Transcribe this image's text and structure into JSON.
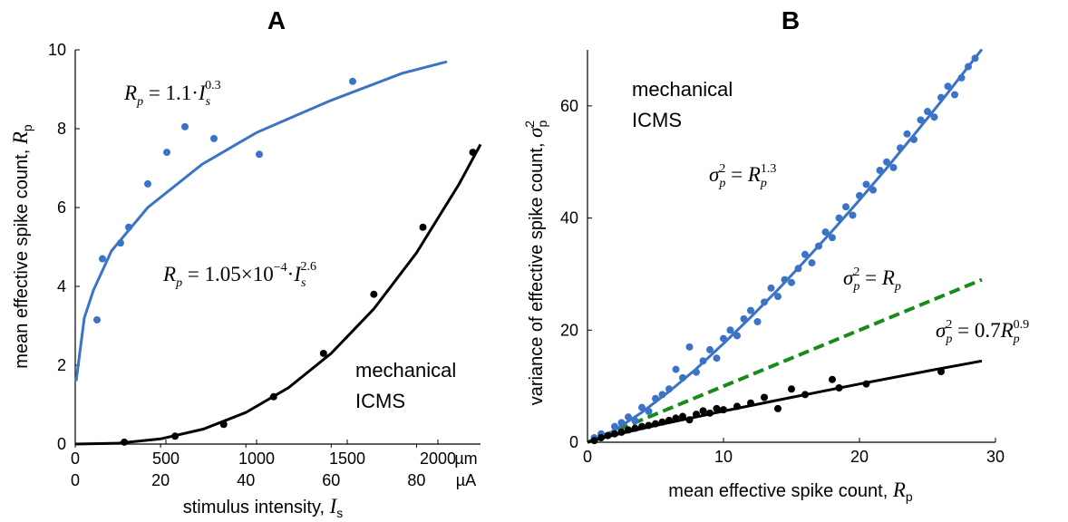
{
  "chart_data": [
    {
      "type": "scatter",
      "title": "A",
      "xlabel": [
        "stimulus intensity, ",
        "I",
        "s"
      ],
      "ylabel": [
        "mean effective spike count, ",
        "R",
        "p"
      ],
      "xlim": [
        0,
        2235
      ],
      "xticks": [
        0,
        500,
        1000,
        1500,
        2000
      ],
      "xunit": "µm",
      "xtick_color": "#3b73c6",
      "x2lim": [
        0,
        95
      ],
      "x2ticks": [
        0,
        20,
        40,
        60,
        80
      ],
      "x2unit": "µA",
      "x2tick_color": "#000000",
      "ylim": [
        0,
        10
      ],
      "yticks": [
        0,
        2,
        4,
        6,
        8,
        10
      ],
      "series": [
        {
          "name": "mechanical",
          "color": "#3b73c6",
          "axis": "x",
          "x": [
            120,
            150,
            250,
            295,
            400,
            505,
            605,
            765,
            1015,
            1530
          ],
          "values": [
            3.15,
            4.7,
            5.1,
            5.5,
            6.6,
            7.4,
            8.05,
            7.75,
            7.35,
            9.2
          ],
          "fit": {
            "x": [
              5,
              50,
              100,
              200,
              400,
              700,
              1000,
              1400,
              1800,
              2050
            ],
            "values": [
              1.6,
              3.2,
              3.9,
              4.9,
              6.0,
              7.1,
              7.9,
              8.7,
              9.4,
              9.7
            ],
            "label": [
              "R",
              "p",
              " = 1.1·",
              "I",
              "s",
              "0.3"
            ]
          }
        },
        {
          "name": "ICMS",
          "color": "#000000",
          "axis": "x2",
          "x": [
            11.5,
            23.4,
            34.8,
            46.5,
            58.2,
            70,
            81.5,
            93.2
          ],
          "values": [
            0.05,
            0.2,
            0.5,
            1.2,
            2.3,
            3.8,
            5.5,
            7.4
          ],
          "fit": {
            "x": [
              0,
              10,
              20,
              30,
              40,
              50,
              60,
              70,
              80,
              90,
              95
            ],
            "values": [
              0,
              0.02,
              0.13,
              0.38,
              0.8,
              1.43,
              2.3,
              3.43,
              4.85,
              6.6,
              7.6
            ],
            "label": [
              "R",
              "p",
              " = 1.05×10",
              "−4",
              "·",
              "I",
              "s",
              "2.6"
            ]
          }
        }
      ]
    },
    {
      "type": "scatter",
      "title": "B",
      "xlabel": [
        "mean effective spike count, ",
        "R",
        "p"
      ],
      "ylabel": [
        "variance of effective spike count, ",
        "σ",
        "p",
        "2"
      ],
      "xlim": [
        0,
        30
      ],
      "xticks": [
        0,
        10,
        20,
        30
      ],
      "ylim": [
        0,
        70
      ],
      "yticks": [
        0,
        20,
        40,
        60
      ],
      "series": [
        {
          "name": "mechanical",
          "color": "#3b73c6",
          "x": [
            0.5,
            1,
            1.5,
            2,
            2.5,
            3,
            3.5,
            4,
            4.5,
            5,
            5.5,
            6,
            6.5,
            7,
            7.5,
            8,
            8.5,
            9,
            9.5,
            10,
            10.5,
            11,
            11.5,
            12,
            12.5,
            13,
            13.5,
            14,
            14.5,
            15,
            15.5,
            16,
            16.5,
            17,
            17.5,
            18,
            18.5,
            19,
            19.5,
            20,
            20.5,
            21,
            21.5,
            22,
            22.5,
            23,
            23.5,
            24,
            24.5,
            25,
            25.5,
            26,
            26.5,
            27,
            27.5,
            28,
            28.5
          ],
          "values": [
            0.8,
            1.5,
            1.2,
            2.8,
            3.5,
            4.5,
            3.8,
            6.2,
            5.5,
            7.8,
            8.5,
            9.5,
            13,
            11.5,
            17,
            12.5,
            14.5,
            16.5,
            15,
            18.5,
            20,
            19,
            22,
            23.5,
            21.5,
            25,
            27.5,
            26,
            29,
            28.5,
            31,
            33.5,
            32,
            35,
            37.5,
            36.5,
            40,
            42,
            40.5,
            44,
            46,
            45,
            48.5,
            50,
            49,
            52.5,
            55,
            54,
            57.5,
            59,
            58,
            61.5,
            63.5,
            62,
            65,
            67,
            68.5
          ],
          "fit": {
            "x": [
              0,
              1,
              2,
              4,
              6,
              8,
              10,
              12,
              14,
              16,
              18,
              20,
              22,
              24,
              26,
              28,
              29
            ],
            "values": [
              0,
              0.88,
              2.17,
              5.33,
              9.04,
              13.1,
              17.6,
              22.3,
              27.2,
              32.4,
              37.7,
              43.2,
              48.9,
              54.8,
              60.8,
              67.0,
              70.1
            ],
            "label": [
              "σ",
              "p",
              "2",
              " = ",
              "R",
              "p",
              "1.3"
            ]
          }
        },
        {
          "name": "ICMS",
          "color": "#000000",
          "x": [
            0.5,
            1,
            1.5,
            2,
            2.5,
            3,
            3.5,
            4,
            4.5,
            5,
            5.5,
            6,
            6.5,
            7,
            7.5,
            8,
            8.5,
            9,
            9.5,
            10,
            11,
            12,
            13,
            14,
            15,
            16,
            18,
            18.5,
            20.5,
            26
          ],
          "values": [
            0.3,
            0.8,
            1.2,
            1.5,
            1.8,
            2.2,
            2.5,
            2.8,
            3.0,
            3.3,
            3.6,
            3.9,
            4.3,
            4.6,
            4.0,
            5.0,
            5.6,
            5.2,
            6.0,
            5.8,
            6.4,
            7.0,
            8.0,
            6.0,
            9.5,
            8.5,
            11.2,
            9.7,
            10.4,
            12.6
          ],
          "fit": {
            "x": [
              0,
              1,
              2,
              5,
              10,
              15,
              20,
              25,
              29
            ],
            "values": [
              0,
              0.7,
              1.31,
              2.98,
              5.56,
              8.0,
              10.4,
              12.7,
              14.5
            ],
            "label": [
              "σ",
              "p",
              "2",
              " = 0.7",
              "R",
              "p",
              "0.9"
            ]
          }
        }
      ],
      "reference_line": {
        "color": "#1a8a1a",
        "style": "dashed",
        "x": [
          0,
          29
        ],
        "values": [
          0,
          29
        ],
        "label": [
          "σ",
          "p",
          "2",
          " = ",
          "R",
          "p"
        ]
      }
    }
  ]
}
